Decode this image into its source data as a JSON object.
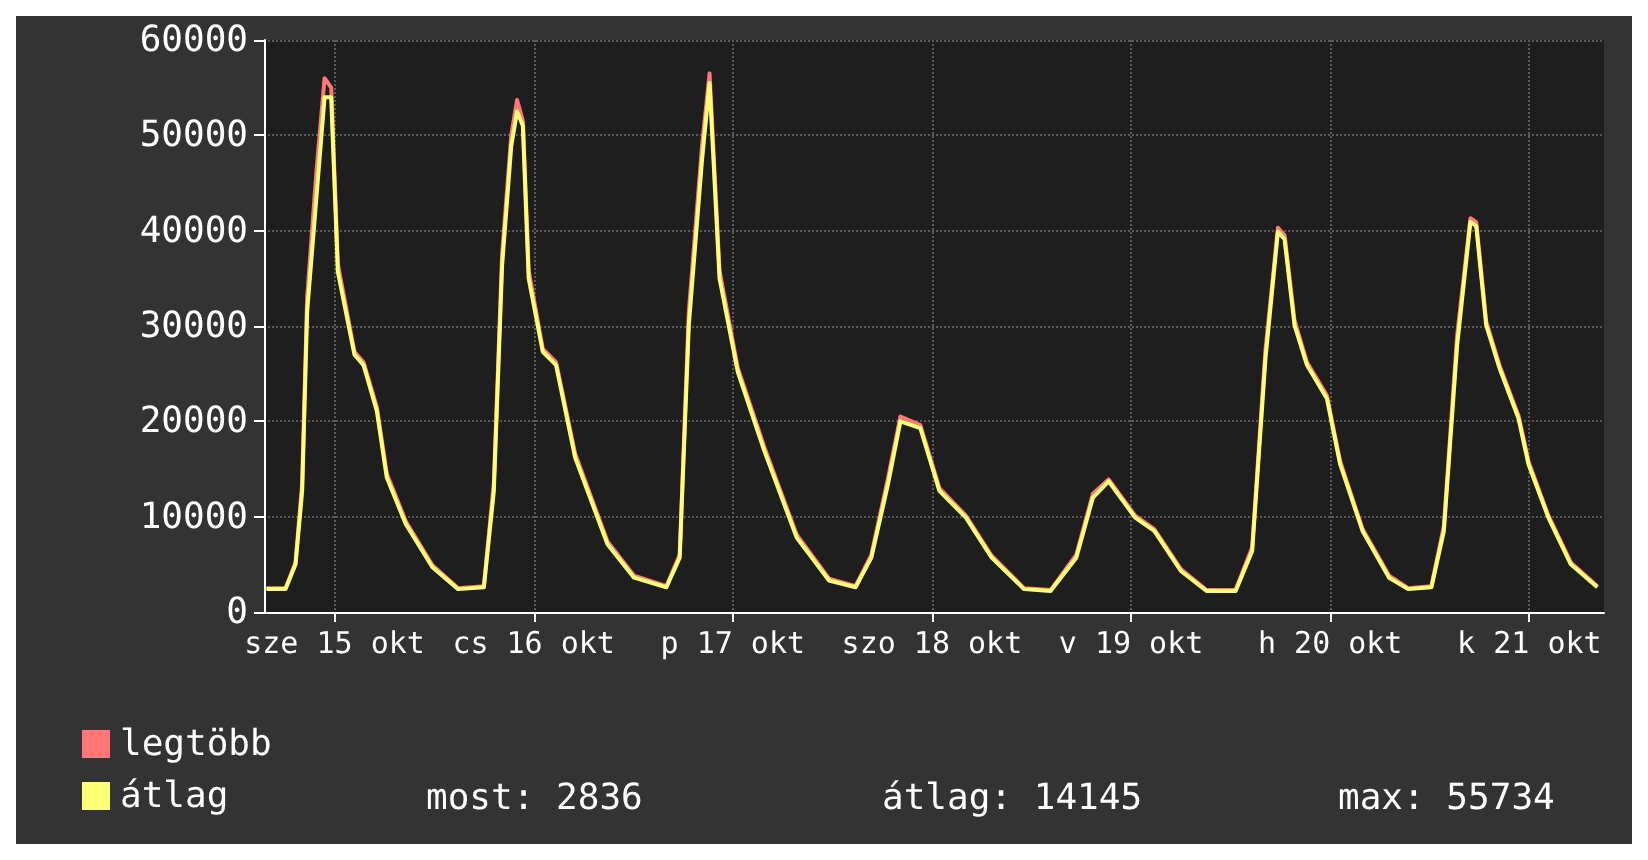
{
  "chart_data": {
    "type": "line",
    "x": [
      "--10-15T03:48",
      "--10-15T06:06",
      "--10-15T07:18",
      "--10-15T08:06",
      "--10-15T08:42",
      "--10-15T09:48",
      "--10-15T10:48",
      "--10-15T11:36",
      "--10-15T12:24",
      "--10-15T14:24",
      "--10-15T15:30",
      "--10-15T17:06",
      "--10-15T18:18",
      "--10-15T20:36",
      "--10-15T23:48",
      "--10-16T02:54",
      "--10-16T06:00",
      "--10-16T07:12",
      "--10-16T08:12",
      "--10-16T09:18",
      "--10-16T10:00",
      "--10-16T10:42",
      "--10-16T11:24",
      "--10-16T13:06",
      "--10-16T14:42",
      "--10-16T17:00",
      "--10-16T20:54",
      "--10-17T00:06",
      "--10-17T04:00",
      "--10-17T05:36",
      "--10-17T06:42",
      "--10-17T08:18",
      "--10-17T09:12",
      "--10-17T10:24",
      "--10-17T12:36",
      "--10-17T15:48",
      "--10-17T19:42",
      "--10-17T23:36",
      "--10-18T02:48",
      "--10-18T04:42",
      "--10-18T06:42",
      "--10-18T08:12",
      "--10-18T10:36",
      "--10-18T12:54",
      "--10-18T16:06",
      "--10-18T19:12",
      "--10-18T23:06",
      "--10-19T02:18",
      "--10-19T05:24",
      "--10-19T07:24",
      "--10-19T09:18",
      "--10-19T12:30",
      "--10-19T14:48",
      "--10-19T18:00",
      "--10-19T21:06",
      "--10-20T00:36",
      "--10-20T02:36",
      "--10-20T04:12",
      "--10-20T05:42",
      "--10-20T06:30",
      "--10-20T07:42",
      "--10-20T09:12",
      "--10-20T11:36",
      "--10-20T13:12",
      "--10-20T15:54",
      "--10-20T19:06",
      "--10-20T21:24",
      "--10-21T00:12",
      "--10-21T01:42",
      "--10-21T03:18",
      "--10-21T04:54",
      "--10-21T05:36",
      "--10-21T06:48",
      "--10-21T08:24",
      "--10-21T10:42",
      "--10-21T11:54",
      "--10-21T14:18",
      "--10-21T17:00",
      "--10-21T20:12"
    ],
    "series": [
      {
        "name": "legtöbb",
        "color": "#ff7777",
        "values": [
          2500,
          2500,
          5200,
          13500,
          33000,
          46000,
          56000,
          55000,
          36500,
          27300,
          26200,
          21500,
          14500,
          9500,
          4900,
          2500,
          2700,
          13500,
          37500,
          50000,
          53700,
          51500,
          35800,
          27600,
          26200,
          16600,
          7400,
          3800,
          2700,
          6000,
          31500,
          49000,
          56500,
          35800,
          25600,
          17300,
          8100,
          3500,
          2700,
          6000,
          14000,
          20500,
          19600,
          13000,
          10100,
          5900,
          2500,
          2300,
          6000,
          12400,
          13900,
          10100,
          8700,
          4500,
          2300,
          2300,
          6800,
          27500,
          40300,
          39500,
          30600,
          26200,
          22700,
          15800,
          8700,
          3800,
          2500,
          2700,
          9000,
          29000,
          41300,
          40900,
          30500,
          25900,
          20600,
          15800,
          10100,
          5200,
          2700
        ]
      },
      {
        "name": "átlag",
        "color": "#ffff77",
        "values": [
          2400,
          2400,
          5000,
          12700,
          31500,
          43300,
          54000,
          54000,
          35700,
          27000,
          25900,
          21100,
          14100,
          9200,
          4700,
          2400,
          2600,
          12700,
          36400,
          48900,
          52500,
          51000,
          35000,
          27300,
          25900,
          16200,
          7100,
          3600,
          2600,
          5700,
          30100,
          47500,
          55500,
          35000,
          25200,
          16900,
          7800,
          3300,
          2600,
          5700,
          13400,
          20000,
          19300,
          12700,
          9900,
          5700,
          2400,
          2200,
          5700,
          12000,
          13700,
          9900,
          8500,
          4300,
          2200,
          2200,
          6400,
          26600,
          39900,
          39100,
          30100,
          25900,
          22400,
          15500,
          8500,
          3600,
          2400,
          2600,
          8500,
          28000,
          40900,
          40500,
          30100,
          25600,
          20300,
          15500,
          9900,
          5000,
          2600
        ]
      }
    ],
    "xlim": [
      "--10-15T03:30",
      "--10-21T21:00"
    ],
    "xticks": [
      {
        "value": "--10-15T12:00",
        "label": "sze 15 okt"
      },
      {
        "value": "--10-16T12:00",
        "label": "cs 16 okt"
      },
      {
        "value": "--10-17T12:00",
        "label": "p 17 okt"
      },
      {
        "value": "--10-18T12:00",
        "label": "szo 18 okt"
      },
      {
        "value": "--10-19T12:00",
        "label": "v 19 okt"
      },
      {
        "value": "--10-20T12:00",
        "label": "h 20 okt"
      },
      {
        "value": "--10-21T12:00",
        "label": "k 21 okt"
      }
    ],
    "ylim": [
      0,
      60000
    ],
    "yticks": [
      0,
      10000,
      20000,
      30000,
      40000,
      50000,
      60000
    ],
    "grid": true,
    "legend": "bottom left",
    "marker": "none",
    "line_style": "solid",
    "annotations": [
      "most: 2836",
      "átlag: 14145",
      "max: 55734"
    ]
  }
}
